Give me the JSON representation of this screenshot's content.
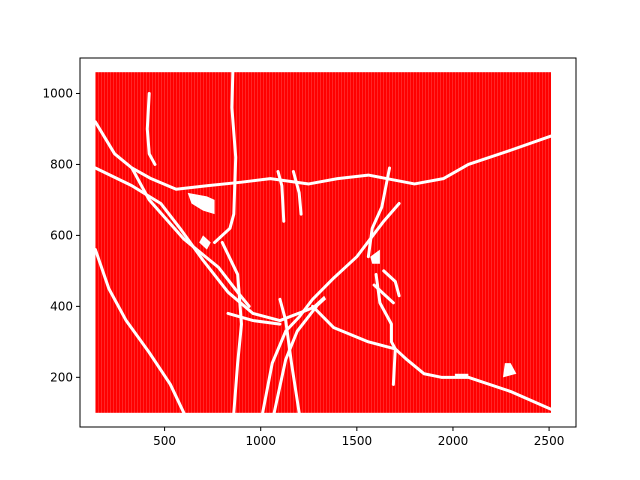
{
  "chart_data": {
    "type": "scatter",
    "title": "",
    "xlabel": "",
    "ylabel": "",
    "xlim": [
      60,
      2640
    ],
    "ylim": [
      60,
      1100
    ],
    "xticks": [
      500,
      1000,
      1500,
      2000,
      2500
    ],
    "yticks": [
      200,
      400,
      600,
      800,
      1000
    ],
    "xtick_labels": [
      "500",
      "1000",
      "1500",
      "2000",
      "2500"
    ],
    "ytick_labels": [
      "200",
      "400",
      "600",
      "800",
      "1000"
    ],
    "grid": false,
    "legend": "none",
    "point_region": {
      "x": [
        140,
        2510
      ],
      "y": [
        100,
        1060
      ]
    },
    "colors": {
      "points": "#ff0000",
      "gaps": "#ffffff"
    },
    "gap_paths": [
      [
        [
          140,
          920
        ],
        [
          240,
          830
        ],
        [
          330,
          790
        ],
        [
          430,
          760
        ],
        [
          560,
          730
        ],
        [
          720,
          740
        ],
        [
          900,
          750
        ],
        [
          1050,
          760
        ],
        [
          1250,
          745
        ],
        [
          1400,
          760
        ],
        [
          1560,
          770
        ],
        [
          1800,
          745
        ],
        [
          1950,
          760
        ],
        [
          2080,
          800
        ],
        [
          2300,
          840
        ],
        [
          2510,
          880
        ]
      ],
      [
        [
          140,
          790
        ],
        [
          330,
          740
        ],
        [
          480,
          690
        ],
        [
          580,
          620
        ],
        [
          700,
          530
        ],
        [
          830,
          440
        ],
        [
          960,
          380
        ],
        [
          1100,
          360
        ],
        [
          1290,
          400
        ]
      ],
      [
        [
          330,
          790
        ],
        [
          420,
          700
        ],
        [
          600,
          590
        ],
        [
          780,
          510
        ],
        [
          880,
          440
        ],
        [
          940,
          400
        ]
      ],
      [
        [
          140,
          560
        ],
        [
          210,
          450
        ],
        [
          300,
          360
        ],
        [
          420,
          270
        ],
        [
          530,
          180
        ],
        [
          600,
          100
        ]
      ],
      [
        [
          860,
          100
        ],
        [
          880,
          240
        ],
        [
          900,
          350
        ],
        [
          880,
          490
        ],
        [
          800,
          580
        ]
      ],
      [
        [
          855,
          1060
        ],
        [
          850,
          960
        ],
        [
          870,
          820
        ],
        [
          860,
          660
        ],
        [
          840,
          620
        ],
        [
          760,
          580
        ]
      ],
      [
        [
          420,
          1000
        ],
        [
          410,
          900
        ],
        [
          420,
          830
        ],
        [
          450,
          800
        ]
      ],
      [
        [
          1010,
          100
        ],
        [
          1060,
          240
        ],
        [
          1130,
          330
        ],
        [
          1200,
          370
        ],
        [
          1270,
          420
        ],
        [
          1380,
          480
        ],
        [
          1500,
          540
        ],
        [
          1640,
          640
        ],
        [
          1720,
          690
        ]
      ],
      [
        [
          1200,
          100
        ],
        [
          1160,
          240
        ],
        [
          1130,
          360
        ],
        [
          1100,
          420
        ]
      ],
      [
        [
          1070,
          100
        ],
        [
          1130,
          250
        ],
        [
          1190,
          330
        ],
        [
          1290,
          400
        ]
      ],
      [
        [
          830,
          380
        ],
        [
          960,
          360
        ],
        [
          1100,
          350
        ]
      ],
      [
        [
          1270,
          400
        ],
        [
          1380,
          340
        ],
        [
          1560,
          300
        ],
        [
          1700,
          280
        ],
        [
          1760,
          250
        ],
        [
          1850,
          210
        ],
        [
          1940,
          200
        ],
        [
          2080,
          200
        ],
        [
          2300,
          160
        ],
        [
          2510,
          110
        ]
      ],
      [
        [
          1600,
          490
        ],
        [
          1620,
          410
        ],
        [
          1680,
          350
        ],
        [
          1680,
          300
        ],
        [
          1700,
          280
        ],
        [
          1690,
          180
        ]
      ],
      [
        [
          1670,
          790
        ],
        [
          1630,
          680
        ],
        [
          1580,
          620
        ],
        [
          1560,
          540
        ]
      ],
      [
        [
          1640,
          500
        ],
        [
          1700,
          470
        ],
        [
          1720,
          430
        ]
      ],
      [
        [
          1090,
          780
        ],
        [
          1110,
          740
        ],
        [
          1120,
          640
        ]
      ],
      [
        [
          1170,
          780
        ],
        [
          1200,
          720
        ],
        [
          1210,
          660
        ]
      ],
      [
        [
          1590,
          460
        ],
        [
          1690,
          410
        ]
      ]
    ],
    "gap_blobs": [
      [
        [
          620,
          720
        ],
        [
          720,
          710
        ],
        [
          760,
          700
        ],
        [
          760,
          660
        ],
        [
          700,
          670
        ],
        [
          640,
          690
        ]
      ],
      [
        [
          700,
          600
        ],
        [
          740,
          580
        ],
        [
          720,
          560
        ],
        [
          680,
          580
        ]
      ],
      [
        [
          1270,
          400
        ],
        [
          1330,
          430
        ],
        [
          1340,
          420
        ],
        [
          1280,
          390
        ]
      ],
      [
        [
          1570,
          540
        ],
        [
          1620,
          560
        ],
        [
          1620,
          520
        ],
        [
          1580,
          520
        ]
      ],
      [
        [
          2010,
          210
        ],
        [
          2080,
          210
        ],
        [
          2080,
          200
        ],
        [
          2010,
          200
        ]
      ],
      [
        [
          2260,
          200
        ],
        [
          2330,
          210
        ],
        [
          2300,
          240
        ],
        [
          2270,
          240
        ]
      ]
    ]
  }
}
